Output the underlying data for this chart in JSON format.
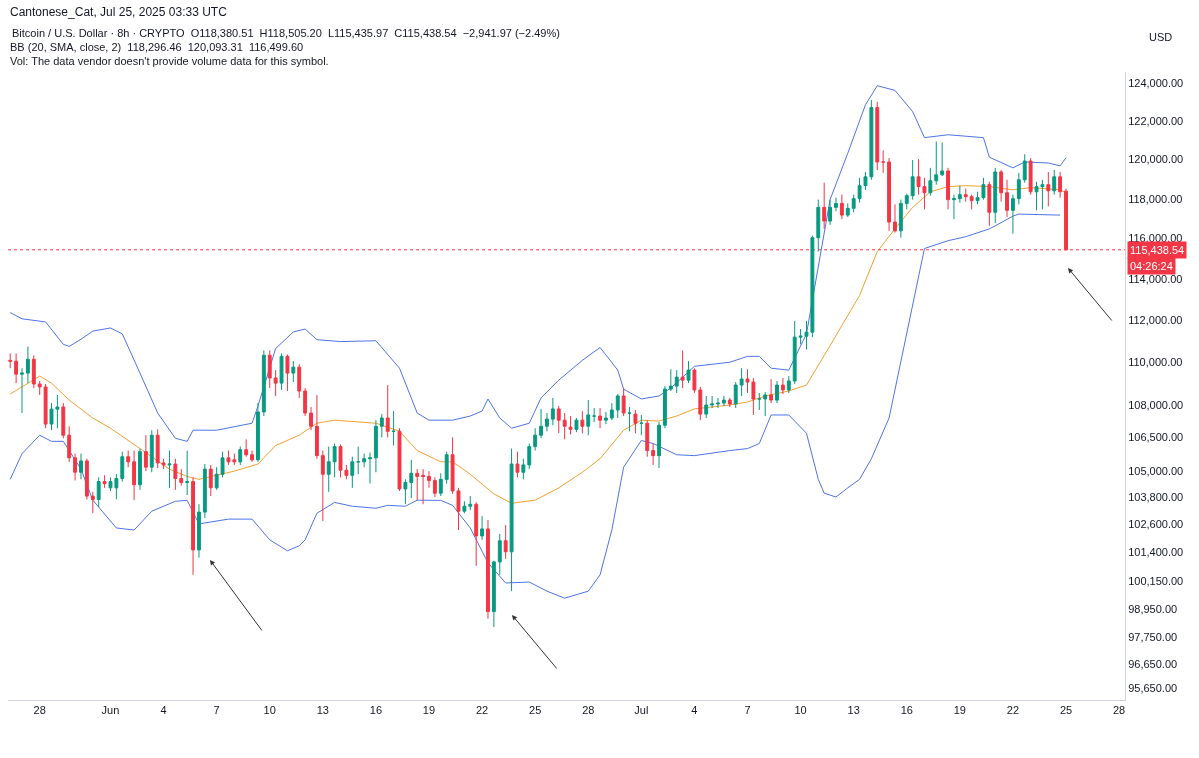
{
  "chart_data": {
    "type": "candlestick",
    "title": "Bitcoin / U.S. Dollar · 8h · CRYPTO  O118,380.51  H118,505.20  L115,435.97  C115,438.54  −2,941.97 (−2.49%)",
    "ylabel": "USD",
    "annotations": [
      "Cantonese_Cat, Jul 25, 2025 03:33 UTC",
      "BB (20, SMA, close, 2)  118,296.46  120,093.31  116,499.60",
      "Vol: The data vendor doesn't provide volume data for this symbol.",
      "04:26:24"
    ],
    "log": "y",
    "xlim": [
      "2025-05-26T05:00",
      "2025-07-28T08:00"
    ],
    "ylim": [
      95160,
      124590
    ],
    "xticks": [
      {
        "value": "2025-05-28",
        "label": "28"
      },
      {
        "value": "2025-06-01",
        "label": "Jun"
      },
      {
        "value": "2025-06-04",
        "label": "4"
      },
      {
        "value": "2025-06-07",
        "label": "7"
      },
      {
        "value": "2025-06-10",
        "label": "10"
      },
      {
        "value": "2025-06-13",
        "label": "13"
      },
      {
        "value": "2025-06-16",
        "label": "16"
      },
      {
        "value": "2025-06-19",
        "label": "19"
      },
      {
        "value": "2025-06-22",
        "label": "22"
      },
      {
        "value": "2025-06-25",
        "label": "25"
      },
      {
        "value": "2025-06-28",
        "label": "28"
      },
      {
        "value": "2025-07-01",
        "label": "Jul"
      },
      {
        "value": "2025-07-04",
        "label": "4"
      },
      {
        "value": "2025-07-07",
        "label": "7"
      },
      {
        "value": "2025-07-10",
        "label": "10"
      },
      {
        "value": "2025-07-13",
        "label": "13"
      },
      {
        "value": "2025-07-16",
        "label": "16"
      },
      {
        "value": "2025-07-19",
        "label": "19"
      },
      {
        "value": "2025-07-22",
        "label": "22"
      },
      {
        "value": "2025-07-25",
        "label": "25"
      },
      {
        "value": "2025-07-28",
        "label": "28"
      }
    ],
    "yticks": [
      {
        "value": 95650,
        "label": "95,650.00"
      },
      {
        "value": 96650,
        "label": "96,650.00"
      },
      {
        "value": 97750,
        "label": "97,750.00"
      },
      {
        "value": 98950,
        "label": "98,950.00"
      },
      {
        "value": 100150,
        "label": "100,150.00"
      },
      {
        "value": 101400,
        "label": "101,400.00"
      },
      {
        "value": 102600,
        "label": "102,600.00"
      },
      {
        "value": 103800,
        "label": "103,800.00"
      },
      {
        "value": 105000,
        "label": "105,000.00"
      },
      {
        "value": 106500,
        "label": "106,500.00"
      },
      {
        "value": 108000,
        "label": "108,000.00"
      },
      {
        "value": 110000,
        "label": "110,000.00"
      },
      {
        "value": 112000,
        "label": "112,000.00"
      },
      {
        "value": 114000,
        "label": "114,000.00"
      },
      {
        "value": 116000,
        "label": "116,000.00"
      },
      {
        "value": 118000,
        "label": "118,000.00"
      },
      {
        "value": 120000,
        "label": "120,000.00"
      },
      {
        "value": 122000,
        "label": "122,000.00"
      },
      {
        "value": 124000,
        "label": "124,000.00"
      }
    ],
    "ref_lines": [
      {
        "axis": "y",
        "value": 115438.54,
        "label": "115,438.54",
        "color": "#f23645",
        "line_style": "dotted"
      }
    ],
    "x": [
      "2025-05-26T08:00",
      "2025-05-26T16:00",
      "2025-05-27T00:00",
      "2025-05-27T08:00",
      "2025-05-27T16:00",
      "2025-05-28T00:00",
      "2025-05-28T08:00",
      "2025-05-28T16:00",
      "2025-05-29T00:00",
      "2025-05-29T08:00",
      "2025-05-29T16:00",
      "2025-05-30T00:00",
      "2025-05-30T08:00",
      "2025-05-30T16:00",
      "2025-05-31T00:00",
      "2025-05-31T08:00",
      "2025-05-31T16:00",
      "2025-06-01T00:00",
      "2025-06-01T08:00",
      "2025-06-01T16:00",
      "2025-06-02T00:00",
      "2025-06-02T08:00",
      "2025-06-02T16:00",
      "2025-06-03T00:00",
      "2025-06-03T08:00",
      "2025-06-03T16:00",
      "2025-06-04T00:00",
      "2025-06-04T08:00",
      "2025-06-04T16:00",
      "2025-06-05T00:00",
      "2025-06-05T08:00",
      "2025-06-05T16:00",
      "2025-06-06T00:00",
      "2025-06-06T08:00",
      "2025-06-06T16:00",
      "2025-06-07T00:00",
      "2025-06-07T08:00",
      "2025-06-07T16:00",
      "2025-06-08T00:00",
      "2025-06-08T08:00",
      "2025-06-08T16:00",
      "2025-06-09T00:00",
      "2025-06-09T08:00",
      "2025-06-09T16:00",
      "2025-06-10T00:00",
      "2025-06-10T08:00",
      "2025-06-10T16:00",
      "2025-06-11T00:00",
      "2025-06-11T08:00",
      "2025-06-11T16:00",
      "2025-06-12T00:00",
      "2025-06-12T08:00",
      "2025-06-12T16:00",
      "2025-06-13T00:00",
      "2025-06-13T08:00",
      "2025-06-13T16:00",
      "2025-06-14T00:00",
      "2025-06-14T08:00",
      "2025-06-14T16:00",
      "2025-06-15T00:00",
      "2025-06-15T08:00",
      "2025-06-15T16:00",
      "2025-06-16T00:00",
      "2025-06-16T08:00",
      "2025-06-16T16:00",
      "2025-06-17T00:00",
      "2025-06-17T08:00",
      "2025-06-17T16:00",
      "2025-06-18T00:00",
      "2025-06-18T08:00",
      "2025-06-18T16:00",
      "2025-06-19T00:00",
      "2025-06-19T08:00",
      "2025-06-19T16:00",
      "2025-06-20T00:00",
      "2025-06-20T08:00",
      "2025-06-20T16:00",
      "2025-06-21T00:00",
      "2025-06-21T08:00",
      "2025-06-21T16:00",
      "2025-06-22T00:00",
      "2025-06-22T08:00",
      "2025-06-22T16:00",
      "2025-06-23T00:00",
      "2025-06-23T08:00",
      "2025-06-23T16:00",
      "2025-06-24T00:00",
      "2025-06-24T08:00",
      "2025-06-24T16:00",
      "2025-06-25T00:00",
      "2025-06-25T08:00",
      "2025-06-25T16:00",
      "2025-06-26T00:00",
      "2025-06-26T08:00",
      "2025-06-26T16:00",
      "2025-06-27T00:00",
      "2025-06-27T08:00",
      "2025-06-27T16:00",
      "2025-06-28T00:00",
      "2025-06-28T08:00",
      "2025-06-28T16:00",
      "2025-06-29T00:00",
      "2025-06-29T08:00",
      "2025-06-29T16:00",
      "2025-06-30T00:00",
      "2025-06-30T08:00",
      "2025-06-30T16:00",
      "2025-07-01T00:00",
      "2025-07-01T08:00",
      "2025-07-01T16:00",
      "2025-07-02T00:00",
      "2025-07-02T08:00",
      "2025-07-02T16:00",
      "2025-07-03T00:00",
      "2025-07-03T08:00",
      "2025-07-03T16:00",
      "2025-07-04T00:00",
      "2025-07-04T08:00",
      "2025-07-04T16:00",
      "2025-07-05T00:00",
      "2025-07-05T08:00",
      "2025-07-05T16:00",
      "2025-07-06T00:00",
      "2025-07-06T08:00",
      "2025-07-06T16:00",
      "2025-07-07T00:00",
      "2025-07-07T08:00",
      "2025-07-07T16:00",
      "2025-07-08T00:00",
      "2025-07-08T08:00",
      "2025-07-08T16:00",
      "2025-07-09T00:00",
      "2025-07-09T08:00",
      "2025-07-09T16:00",
      "2025-07-10T00:00",
      "2025-07-10T08:00",
      "2025-07-10T16:00",
      "2025-07-11T00:00",
      "2025-07-11T08:00",
      "2025-07-11T16:00",
      "2025-07-12T00:00",
      "2025-07-12T08:00",
      "2025-07-12T16:00",
      "2025-07-13T00:00",
      "2025-07-13T08:00",
      "2025-07-13T16:00",
      "2025-07-14T00:00",
      "2025-07-14T08:00",
      "2025-07-14T16:00",
      "2025-07-15T00:00",
      "2025-07-15T08:00",
      "2025-07-15T16:00",
      "2025-07-16T00:00",
      "2025-07-16T08:00",
      "2025-07-16T16:00",
      "2025-07-17T00:00",
      "2025-07-17T08:00",
      "2025-07-17T16:00",
      "2025-07-18T00:00",
      "2025-07-18T08:00",
      "2025-07-18T16:00",
      "2025-07-19T00:00",
      "2025-07-19T08:00",
      "2025-07-19T16:00",
      "2025-07-20T00:00",
      "2025-07-20T08:00",
      "2025-07-20T16:00",
      "2025-07-21T00:00",
      "2025-07-21T08:00",
      "2025-07-21T16:00",
      "2025-07-22T00:00",
      "2025-07-22T08:00",
      "2025-07-22T16:00",
      "2025-07-23T00:00",
      "2025-07-23T08:00",
      "2025-07-23T16:00",
      "2025-07-24T00:00",
      "2025-07-24T08:00",
      "2025-07-24T16:00",
      "2025-07-25T00:00"
    ],
    "ohlc": [
      [
        110090,
        110420,
        109720,
        110050
      ],
      [
        110050,
        110420,
        109020,
        109440
      ],
      [
        109440,
        109720,
        107630,
        109490
      ],
      [
        109490,
        110740,
        109020,
        110140
      ],
      [
        110140,
        110330,
        108790,
        108980
      ],
      [
        108980,
        109120,
        108470,
        108840
      ],
      [
        108840,
        108980,
        106930,
        107120
      ],
      [
        107120,
        108090,
        106840,
        107810
      ],
      [
        107810,
        108470,
        106930,
        107910
      ],
      [
        107910,
        108090,
        106470,
        106610
      ],
      [
        106610,
        107020,
        105400,
        105580
      ],
      [
        105580,
        105770,
        104560,
        104930
      ],
      [
        104930,
        105770,
        104610,
        105440
      ],
      [
        105440,
        105540,
        103710,
        103860
      ],
      [
        103860,
        104050,
        103100,
        103710
      ],
      [
        103710,
        104700,
        103370,
        104510
      ],
      [
        104510,
        104790,
        104230,
        104420
      ],
      [
        104230,
        104700,
        104090,
        104510
      ],
      [
        104230,
        104840,
        103720,
        104650
      ],
      [
        104650,
        105860,
        104510,
        105630
      ],
      [
        105630,
        105910,
        105160,
        105400
      ],
      [
        105400,
        105910,
        103680,
        104370
      ],
      [
        104370,
        106000,
        104140,
        105860
      ],
      [
        105860,
        106610,
        104980,
        105160
      ],
      [
        105160,
        106840,
        104930,
        106610
      ],
      [
        106610,
        106880,
        105120,
        105350
      ],
      [
        105350,
        105540,
        105070,
        105260
      ],
      [
        105260,
        105910,
        104230,
        105300
      ],
      [
        105300,
        105540,
        104140,
        104650
      ],
      [
        104650,
        105070,
        104330,
        104470
      ],
      [
        104470,
        105910,
        103910,
        104510
      ],
      [
        104510,
        104700,
        100410,
        101490
      ],
      [
        101490,
        103500,
        101150,
        103150
      ],
      [
        103150,
        105300,
        102890,
        105070
      ],
      [
        105070,
        105260,
        103860,
        104230
      ],
      [
        104230,
        105160,
        104140,
        104840
      ],
      [
        104840,
        105860,
        104700,
        105580
      ],
      [
        105580,
        105910,
        105260,
        105400
      ],
      [
        105490,
        105770,
        105260,
        105400
      ],
      [
        105400,
        106090,
        105260,
        105950
      ],
      [
        105950,
        106420,
        105630,
        105720
      ],
      [
        105720,
        105910,
        105400,
        105490
      ],
      [
        105490,
        108090,
        105400,
        107680
      ],
      [
        107680,
        110560,
        107490,
        110330
      ],
      [
        110330,
        110560,
        108790,
        109260
      ],
      [
        109260,
        109630,
        108420,
        109020
      ],
      [
        109020,
        110420,
        108700,
        110280
      ],
      [
        110280,
        110370,
        108650,
        109490
      ],
      [
        109490,
        110050,
        109070,
        109770
      ],
      [
        109770,
        109910,
        108330,
        108650
      ],
      [
        108650,
        108790,
        107490,
        107630
      ],
      [
        107630,
        107910,
        106840,
        107020
      ],
      [
        107020,
        108470,
        105540,
        105680
      ],
      [
        105680,
        105910,
        102760,
        104840
      ],
      [
        104840,
        106090,
        104050,
        105400
      ],
      [
        105400,
        106230,
        104700,
        106090
      ],
      [
        106090,
        106190,
        104700,
        105020
      ],
      [
        105020,
        105260,
        104610,
        104790
      ],
      [
        104790,
        105630,
        104230,
        105400
      ],
      [
        105400,
        106090,
        104840,
        105400
      ],
      [
        105400,
        105770,
        105160,
        105540
      ],
      [
        105540,
        105820,
        104420,
        105580
      ],
      [
        105580,
        107300,
        104930,
        107020
      ],
      [
        107020,
        107580,
        106510,
        107400
      ],
      [
        107400,
        108930,
        106510,
        106790
      ],
      [
        106790,
        107720,
        106140,
        106790
      ],
      [
        106790,
        106930,
        104090,
        104180
      ],
      [
        104180,
        104610,
        103500,
        104470
      ],
      [
        104470,
        105490,
        103770,
        104880
      ],
      [
        104880,
        105070,
        103680,
        104740
      ],
      [
        104790,
        105070,
        103500,
        104740
      ],
      [
        104740,
        104980,
        104230,
        104560
      ],
      [
        104560,
        104700,
        103820,
        103990
      ],
      [
        103990,
        104880,
        103860,
        104610
      ],
      [
        104610,
        105860,
        104420,
        105720
      ],
      [
        105720,
        106510,
        103960,
        104090
      ],
      [
        104090,
        104230,
        102360,
        103190
      ],
      [
        103190,
        103630,
        103100,
        103410
      ],
      [
        103410,
        103860,
        103230,
        103500
      ],
      [
        103500,
        103580,
        100800,
        102100
      ],
      [
        102100,
        102970,
        101930,
        102410
      ],
      [
        102410,
        102800,
        98540,
        98840
      ],
      [
        98840,
        101020,
        98190,
        100970
      ],
      [
        100970,
        102190,
        100410,
        101890
      ],
      [
        101890,
        102580,
        101100,
        101410
      ],
      [
        101410,
        106000,
        99710,
        105300
      ],
      [
        105300,
        105860,
        104700,
        104930
      ],
      [
        104930,
        105540,
        104610,
        105260
      ],
      [
        105260,
        106230,
        105070,
        106090
      ],
      [
        106090,
        106930,
        105910,
        106610
      ],
      [
        106610,
        107820,
        106470,
        107020
      ],
      [
        107020,
        107630,
        106790,
        107350
      ],
      [
        107350,
        108330,
        107070,
        107820
      ],
      [
        107820,
        107950,
        106700,
        107300
      ],
      [
        107300,
        107630,
        106420,
        107020
      ],
      [
        106980,
        107490,
        106650,
        106880
      ],
      [
        106880,
        107400,
        106750,
        107300
      ],
      [
        107300,
        107720,
        106700,
        107020
      ],
      [
        107020,
        108230,
        106610,
        107540
      ],
      [
        107490,
        107860,
        107210,
        107490
      ],
      [
        107490,
        107860,
        106930,
        107300
      ],
      [
        107300,
        107680,
        107120,
        107400
      ],
      [
        107400,
        108090,
        107300,
        107770
      ],
      [
        107770,
        108510,
        107400,
        108420
      ],
      [
        108420,
        108790,
        107490,
        107630
      ],
      [
        107630,
        107910,
        106790,
        107630
      ],
      [
        107580,
        107770,
        106700,
        107160
      ],
      [
        107160,
        107540,
        106610,
        107160
      ],
      [
        107160,
        107300,
        105630,
        105910
      ],
      [
        105910,
        106230,
        105260,
        105680
      ],
      [
        105680,
        107210,
        105120,
        107070
      ],
      [
        107070,
        108880,
        106930,
        108740
      ],
      [
        108740,
        109670,
        108650,
        108880
      ],
      [
        108880,
        109630,
        108560,
        109300
      ],
      [
        109300,
        110560,
        108790,
        109160
      ],
      [
        109160,
        110050,
        109020,
        109630
      ],
      [
        109630,
        109720,
        108560,
        108700
      ],
      [
        108700,
        108840,
        107300,
        107580
      ],
      [
        107580,
        108420,
        107400,
        108000
      ],
      [
        108000,
        108420,
        107860,
        108050
      ],
      [
        108050,
        108330,
        107860,
        108090
      ],
      [
        108090,
        108420,
        107950,
        108230
      ],
      [
        108230,
        108330,
        107910,
        108050
      ],
      [
        108050,
        109070,
        107860,
        108930
      ],
      [
        108930,
        109720,
        108420,
        109210
      ],
      [
        109210,
        109670,
        108560,
        109070
      ],
      [
        109070,
        109260,
        107540,
        108280
      ],
      [
        108280,
        108560,
        107770,
        108280
      ],
      [
        108280,
        108600,
        107490,
        108470
      ],
      [
        108470,
        109210,
        108090,
        108230
      ],
      [
        108230,
        109120,
        108090,
        108930
      ],
      [
        108930,
        109260,
        108510,
        108700
      ],
      [
        108700,
        109350,
        108560,
        109120
      ],
      [
        109120,
        111970,
        108980,
        111190
      ],
      [
        111190,
        111580,
        110850,
        111240
      ],
      [
        111240,
        111970,
        110600,
        111430
      ],
      [
        111430,
        116140,
        111190,
        116040
      ],
      [
        116040,
        117950,
        115350,
        117560
      ],
      [
        117560,
        118810,
        116480,
        116870
      ],
      [
        116870,
        117950,
        116680,
        117560
      ],
      [
        117560,
        118050,
        117360,
        117760
      ],
      [
        117760,
        118200,
        116970,
        117170
      ],
      [
        117170,
        117760,
        117070,
        117510
      ],
      [
        117510,
        118200,
        117310,
        118000
      ],
      [
        118000,
        119060,
        117800,
        118660
      ],
      [
        118660,
        119360,
        118450,
        119110
      ],
      [
        119110,
        123100,
        118960,
        122700
      ],
      [
        122700,
        123000,
        119460,
        119870
      ],
      [
        119870,
        120470,
        119310,
        119870
      ],
      [
        119870,
        120070,
        116380,
        116820
      ],
      [
        116820,
        117710,
        116290,
        116380
      ],
      [
        116380,
        117950,
        116040,
        117760
      ],
      [
        117760,
        118250,
        117460,
        118150
      ],
      [
        118150,
        119970,
        117950,
        119110
      ],
      [
        119110,
        120020,
        118200,
        118610
      ],
      [
        118610,
        119060,
        117460,
        118300
      ],
      [
        118300,
        119570,
        118150,
        118910
      ],
      [
        118910,
        120930,
        118710,
        119210
      ],
      [
        119210,
        120880,
        119160,
        119410
      ],
      [
        119410,
        119570,
        117460,
        117950
      ],
      [
        117950,
        118200,
        116970,
        118000
      ],
      [
        118000,
        118660,
        117800,
        118200
      ],
      [
        118200,
        118510,
        117850,
        118100
      ],
      [
        118100,
        118200,
        117460,
        117900
      ],
      [
        117900,
        118350,
        117710,
        118050
      ],
      [
        118050,
        119060,
        117950,
        118710
      ],
      [
        118710,
        118860,
        116630,
        117310
      ],
      [
        117310,
        119570,
        116780,
        119360
      ],
      [
        119360,
        119460,
        117850,
        118300
      ],
      [
        118300,
        118960,
        117070,
        117410
      ],
      [
        117410,
        118200,
        116240,
        118000
      ],
      [
        118000,
        119310,
        117710,
        118960
      ],
      [
        118960,
        120270,
        118810,
        119920
      ],
      [
        119920,
        120070,
        118200,
        118350
      ],
      [
        118350,
        118860,
        117410,
        118610
      ],
      [
        118610,
        118960,
        117460,
        118710
      ],
      [
        118710,
        119360,
        117610,
        118400
      ],
      [
        118400,
        119460,
        118200,
        119110
      ],
      [
        119110,
        119360,
        118050,
        118350
      ],
      [
        118380.51,
        118505.2,
        115435.97,
        115438.54
      ]
    ],
    "colors": [
      "#f23645",
      "#f23645",
      "#089981",
      "#089981",
      "#f23645",
      "#f23645",
      "#f23645",
      "#089981",
      "#089981",
      "#f23645",
      "#f23645",
      "#f23645",
      "#089981",
      "#f23645",
      "#f23645",
      "#089981",
      "#f23645",
      "#089981",
      "#089981",
      "#089981",
      "#f23645",
      "#f23645",
      "#089981",
      "#f23645",
      "#089981",
      "#f23645",
      "#f23645",
      "#089981",
      "#f23645",
      "#f23645",
      "#089981",
      "#f23645",
      "#089981",
      "#089981",
      "#f23645",
      "#089981",
      "#089981",
      "#f23645",
      "#f23645",
      "#089981",
      "#f23645",
      "#f23645",
      "#089981",
      "#089981",
      "#f23645",
      "#f23645",
      "#089981",
      "#f23645",
      "#089981",
      "#f23645",
      "#f23645",
      "#f23645",
      "#f23645",
      "#f23645",
      "#089981",
      "#089981",
      "#f23645",
      "#f23645",
      "#089981",
      "#089981",
      "#089981",
      "#089981",
      "#089981",
      "#089981",
      "#f23645",
      "#089981",
      "#f23645",
      "#089981",
      "#089981",
      "#f23645",
      "#f23645",
      "#f23645",
      "#f23645",
      "#089981",
      "#089981",
      "#f23645",
      "#f23645",
      "#089981",
      "#089981",
      "#f23645",
      "#089981",
      "#f23645",
      "#089981",
      "#089981",
      "#f23645",
      "#089981",
      "#f23645",
      "#089981",
      "#089981",
      "#089981",
      "#089981",
      "#089981",
      "#089981",
      "#f23645",
      "#f23645",
      "#f23645",
      "#089981",
      "#f23645",
      "#089981",
      "#089981",
      "#f23645",
      "#089981",
      "#089981",
      "#089981",
      "#f23645",
      "#089981",
      "#f23645",
      "#089981",
      "#f23645",
      "#f23645",
      "#089981",
      "#089981",
      "#089981",
      "#089981",
      "#f23645",
      "#089981",
      "#f23645",
      "#f23645",
      "#089981",
      "#089981",
      "#089981",
      "#089981",
      "#f23645",
      "#089981",
      "#089981",
      "#f23645",
      "#f23645",
      "#089981",
      "#089981",
      "#f23645",
      "#089981",
      "#f23645",
      "#089981",
      "#089981",
      "#089981",
      "#089981",
      "#089981",
      "#089981",
      "#f23645",
      "#089981",
      "#089981",
      "#f23645",
      "#089981",
      "#089981",
      "#089981",
      "#089981",
      "#089981",
      "#f23645",
      "#f23645",
      "#f23645",
      "#f23645",
      "#089981",
      "#089981",
      "#089981",
      "#f23645",
      "#f23645",
      "#089981",
      "#089981",
      "#089981",
      "#f23645",
      "#089981",
      "#089981",
      "#f23645",
      "#f23645",
      "#089981",
      "#089981",
      "#f23645",
      "#089981",
      "#f23645",
      "#f23645",
      "#089981",
      "#089981",
      "#089981",
      "#f23645",
      "#089981",
      "#089981",
      "#f23645",
      "#089981",
      "#f23645",
      "#f23645"
    ],
    "series": [
      {
        "type": "line",
        "color": "#4f74e8",
        "x": [
          "2025-05-26T08:00",
          "2025-05-27T00:00",
          "2025-05-28T08:00",
          "2025-05-29T08:00",
          "2025-05-29T16:00",
          "2025-05-30T08:00",
          "2025-05-31T00:00",
          "2025-06-01T00:00",
          "2025-06-01T16:00",
          "2025-06-02T16:00",
          "2025-06-03T16:00",
          "2025-06-04T16:00",
          "2025-06-05T08:00",
          "2025-06-05T16:00",
          "2025-06-07T00:00",
          "2025-06-09T00:00",
          "2025-06-09T08:00",
          "2025-06-10T08:00",
          "2025-06-11T08:00",
          "2025-06-12T00:00",
          "2025-06-12T16:00",
          "2025-06-14T00:00",
          "2025-06-16T00:00",
          "2025-06-17T08:00",
          "2025-06-18T08:00",
          "2025-06-19T00:00",
          "2025-06-20T08:00",
          "2025-06-21T08:00",
          "2025-06-22T00:00",
          "2025-06-22T08:00",
          "2025-06-23T00:00",
          "2025-06-23T16:00",
          "2025-06-24T16:00",
          "2025-06-25T08:00",
          "2025-06-26T08:00",
          "2025-06-27T16:00",
          "2025-06-28T16:00",
          "2025-06-29T16:00",
          "2025-06-30T00:00",
          "2025-07-01T00:00",
          "2025-07-02T00:00",
          "2025-07-02T16:00",
          "2025-07-04T00:00",
          "2025-07-06T00:00",
          "2025-07-07T00:00",
          "2025-07-07T16:00",
          "2025-07-08T08:00",
          "2025-07-09T08:00",
          "2025-07-10T08:00",
          "2025-07-11T16:00",
          "2025-07-12T16:00",
          "2025-07-13T16:00",
          "2025-07-14T08:00",
          "2025-07-15T08:00",
          "2025-07-16T08:00",
          "2025-07-17T00:00",
          "2025-07-18T08:00",
          "2025-07-20T08:00",
          "2025-07-20T16:00",
          "2025-07-22T00:00",
          "2025-07-22T16:00",
          "2025-07-24T00:00",
          "2025-07-24T16:00",
          "2025-07-25T00:00"
        ],
        "values": [
          112370,
          112070,
          111920,
          110850,
          110750,
          111090,
          111480,
          111630,
          111350,
          109490,
          107630,
          106470,
          106330,
          106840,
          106840,
          107160,
          107950,
          110650,
          111440,
          111580,
          111070,
          110980,
          111020,
          109720,
          107630,
          107300,
          107300,
          107490,
          107720,
          108280,
          107400,
          106930,
          107160,
          108330,
          109160,
          110090,
          110700,
          109630,
          108740,
          108280,
          108420,
          108790,
          109810,
          110000,
          110280,
          110280,
          109720,
          109630,
          111350,
          117950,
          120320,
          122850,
          123860,
          123610,
          122490,
          121130,
          121280,
          121130,
          120120,
          119570,
          119870,
          119820,
          119670,
          120093.31
        ]
      },
      {
        "type": "line",
        "color": "#f5a030",
        "x": [
          "2025-05-26T08:00",
          "2025-05-28T00:00",
          "2025-05-28T16:00",
          "2025-05-29T16:00",
          "2025-05-31T00:00",
          "2025-06-01T00:00",
          "2025-06-02T16:00",
          "2025-06-04T08:00",
          "2025-06-05T08:00",
          "2025-06-06T00:00",
          "2025-06-08T00:00",
          "2025-06-09T08:00",
          "2025-06-10T08:00",
          "2025-06-11T16:00",
          "2025-06-12T16:00",
          "2025-06-13T16:00",
          "2025-06-16T00:00",
          "2025-06-17T08:00",
          "2025-06-18T08:00",
          "2025-06-19T16:00",
          "2025-06-20T08:00",
          "2025-06-21T08:00",
          "2025-06-22T16:00",
          "2025-06-23T16:00",
          "2025-06-25T00:00",
          "2025-06-26T08:00",
          "2025-06-27T16:00",
          "2025-06-28T16:00",
          "2025-06-30T00:00",
          "2025-07-01T00:00",
          "2025-07-02T00:00",
          "2025-07-03T00:00",
          "2025-07-04T00:00",
          "2025-07-06T00:00",
          "2025-07-07T00:00",
          "2025-07-08T00:00",
          "2025-07-09T08:00",
          "2025-07-10T08:00",
          "2025-07-11T16:00",
          "2025-07-13T08:00",
          "2025-07-14T08:00",
          "2025-07-15T08:00",
          "2025-07-16T08:00",
          "2025-07-17T08:00",
          "2025-07-18T08:00",
          "2025-07-19T08:00",
          "2025-07-20T16:00",
          "2025-07-22T00:00",
          "2025-07-23T00:00",
          "2025-07-24T16:00",
          "2025-07-25T00:00"
        ],
        "values": [
          108510,
          109350,
          109020,
          108230,
          107400,
          106930,
          106000,
          105070,
          104740,
          104610,
          104980,
          105300,
          106140,
          106610,
          107160,
          107300,
          107160,
          106790,
          105910,
          105400,
          105400,
          104840,
          103960,
          103540,
          103680,
          104230,
          104930,
          105540,
          106840,
          107300,
          107260,
          107490,
          107820,
          108000,
          108140,
          108420,
          108650,
          108930,
          110790,
          113200,
          115350,
          116480,
          117560,
          118350,
          118610,
          118660,
          118610,
          118450,
          118560,
          118450,
          118296.46
        ]
      },
      {
        "type": "line",
        "color": "#4f74e8",
        "x": [
          "2025-05-26T08:00",
          "2025-05-27T00:00",
          "2025-05-28T00:00",
          "2025-05-28T16:00",
          "2025-05-29T08:00",
          "2025-05-30T08:00",
          "2025-05-31T00:00",
          "2025-06-01T08:00",
          "2025-06-02T08:00",
          "2025-06-03T08:00",
          "2025-06-04T16:00",
          "2025-06-05T08:00",
          "2025-06-06T00:00",
          "2025-06-07T16:00",
          "2025-06-09T00:00",
          "2025-06-10T00:00",
          "2025-06-11T00:00",
          "2025-06-11T16:00",
          "2025-06-12T00:00",
          "2025-06-12T16:00",
          "2025-06-13T16:00",
          "2025-06-14T16:00",
          "2025-06-16T00:00",
          "2025-06-16T16:00",
          "2025-06-17T16:00",
          "2025-06-18T08:00",
          "2025-06-19T16:00",
          "2025-06-20T08:00",
          "2025-06-21T08:00",
          "2025-06-22T08:00",
          "2025-06-23T08:00",
          "2025-06-24T16:00",
          "2025-06-25T16:00",
          "2025-06-26T16:00",
          "2025-06-28T00:00",
          "2025-06-28T16:00",
          "2025-06-29T08:00",
          "2025-06-30T00:00",
          "2025-07-01T00:00",
          "2025-07-01T16:00",
          "2025-07-03T00:00",
          "2025-07-04T00:00",
          "2025-07-06T00:00",
          "2025-07-07T00:00",
          "2025-07-07T16:00",
          "2025-07-08T08:00",
          "2025-07-09T08:00",
          "2025-07-10T08:00",
          "2025-07-11T00:00",
          "2025-07-11T08:00",
          "2025-07-12T00:00",
          "2025-07-12T16:00",
          "2025-07-13T08:00",
          "2025-07-14T00:00",
          "2025-07-15T00:00",
          "2025-07-17T00:00",
          "2025-07-18T08:00",
          "2025-07-19T08:00",
          "2025-07-20T16:00",
          "2025-07-21T00:00",
          "2025-07-22T00:00",
          "2025-07-22T08:00",
          "2025-07-24T16:00"
        ],
        "values": [
          104610,
          105770,
          106610,
          106330,
          106330,
          105070,
          103680,
          102450,
          102360,
          103190,
          103630,
          103670,
          102630,
          102840,
          102840,
          101930,
          101450,
          101670,
          101930,
          103100,
          103580,
          103410,
          103320,
          103450,
          103410,
          103680,
          103670,
          103450,
          102450,
          100930,
          100060,
          100100,
          99710,
          99410,
          99710,
          100410,
          102360,
          105160,
          106370,
          106230,
          105720,
          105680,
          105910,
          106000,
          106230,
          107540,
          107540,
          106700,
          104610,
          103990,
          103820,
          104230,
          104610,
          105540,
          107400,
          115500,
          115890,
          116090,
          116480,
          116630,
          117120,
          117220,
          117170
        ]
      }
    ]
  }
}
